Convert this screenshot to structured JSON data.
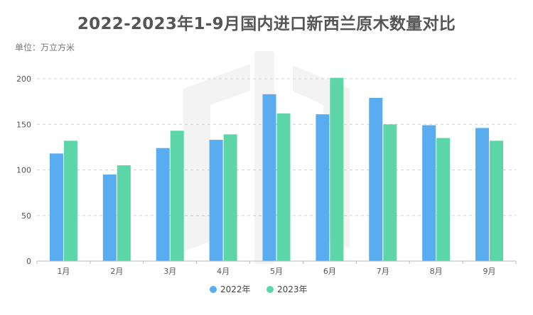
{
  "chart_data": {
    "type": "bar",
    "title": "2022-2023年1-9月国内进口新西兰原木数量对比",
    "unit": "单位：万立方米",
    "categories": [
      "1月",
      "2月",
      "3月",
      "4月",
      "5月",
      "6月",
      "7月",
      "8月",
      "9月"
    ],
    "series": [
      {
        "name": "2022年",
        "color": "#5aacf0",
        "values": [
          118,
          95,
          124,
          133,
          183,
          161,
          179,
          149,
          146
        ]
      },
      {
        "name": "2023年",
        "color": "#5cd6a8",
        "values": [
          132,
          105,
          143,
          139,
          162,
          201,
          150,
          135,
          132
        ]
      }
    ],
    "ylim": [
      0,
      200
    ],
    "yticks": [
      0,
      50,
      100,
      150,
      200
    ],
    "grid": true,
    "legend_position": "bottom"
  }
}
